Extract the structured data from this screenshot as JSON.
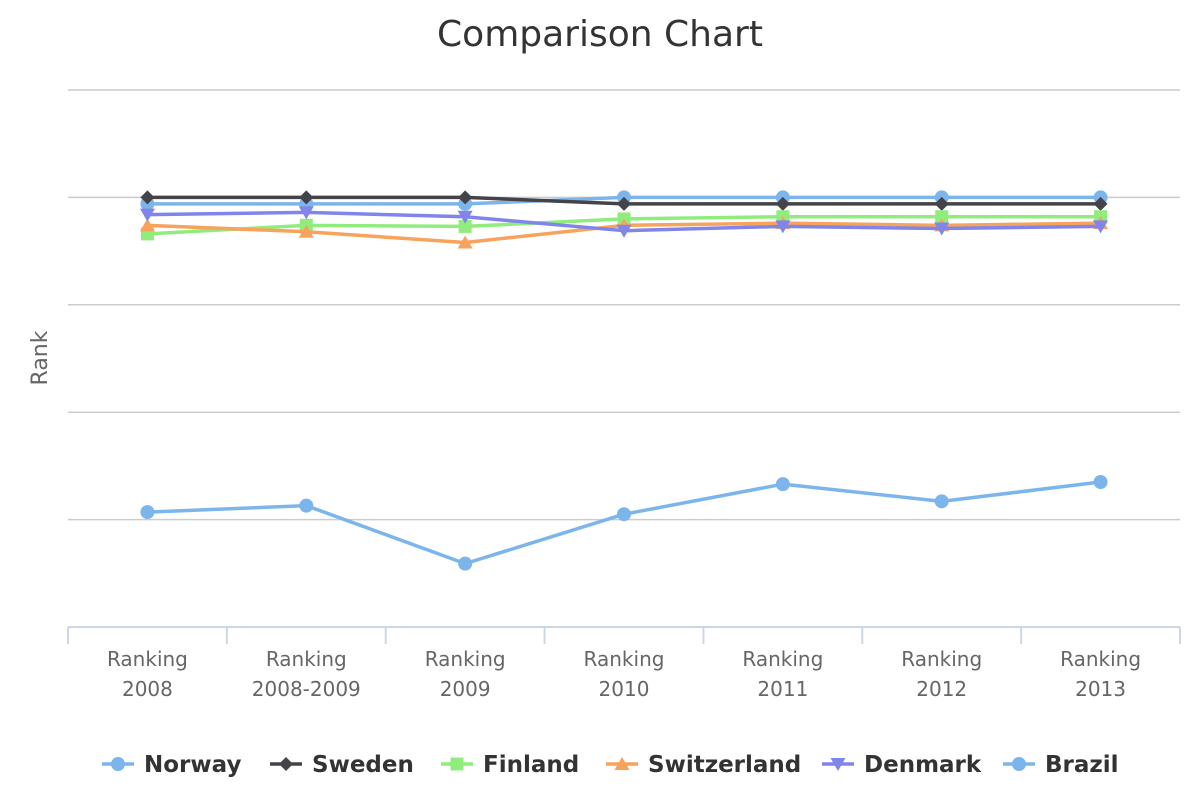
{
  "chart_data": {
    "type": "line",
    "title": "Comparison Chart",
    "xlabel": "",
    "ylabel": "Rank",
    "categories": [
      [
        "Ranking",
        "2008"
      ],
      [
        "Ranking",
        "2008-2009"
      ],
      [
        "Ranking",
        "2009"
      ],
      [
        "Ranking",
        "2010"
      ],
      [
        "Ranking",
        "2011"
      ],
      [
        "Ranking",
        "2012"
      ],
      [
        "Ranking",
        "2013"
      ]
    ],
    "ylim": [
      0,
      5
    ],
    "y_tick_values": [
      0,
      1,
      2,
      3,
      4,
      5
    ],
    "y_tick_labels_visible": false,
    "grid": true,
    "legend": "bottom",
    "series": [
      {
        "name": "Norway",
        "color": "#7cb5ec",
        "marker": "circle",
        "values": [
          3.94,
          3.94,
          3.94,
          4.0,
          4.0,
          4.0,
          4.0
        ]
      },
      {
        "name": "Sweden",
        "color": "#434348",
        "marker": "diamond",
        "values": [
          4.0,
          4.0,
          4.0,
          3.94,
          3.94,
          3.94,
          3.94
        ]
      },
      {
        "name": "Finland",
        "color": "#90ed7d",
        "marker": "square",
        "values": [
          3.66,
          3.74,
          3.73,
          3.8,
          3.82,
          3.82,
          3.82
        ]
      },
      {
        "name": "Switzerland",
        "color": "#f7a35c",
        "marker": "triangle",
        "values": [
          3.74,
          3.68,
          3.58,
          3.74,
          3.76,
          3.74,
          3.76
        ]
      },
      {
        "name": "Denmark",
        "color": "#8085e9",
        "marker": "triangle-down",
        "values": [
          3.84,
          3.86,
          3.82,
          3.69,
          3.73,
          3.71,
          3.73
        ]
      },
      {
        "name": "Brazil",
        "color": "#7cb5ec",
        "marker": "circle",
        "values": [
          1.07,
          1.13,
          0.59,
          1.05,
          1.33,
          1.17,
          1.35
        ]
      }
    ]
  }
}
